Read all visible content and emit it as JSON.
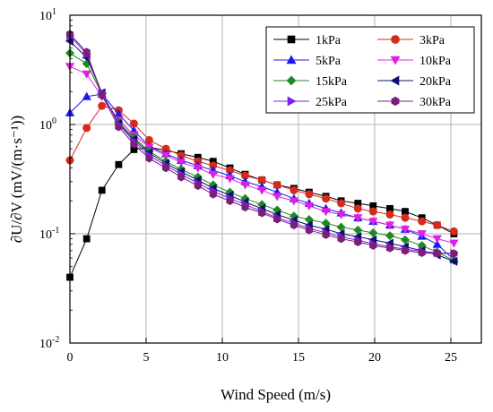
{
  "chart_data": {
    "type": "line",
    "xlabel": "Wind Speed (m/s)",
    "ylabel": "∂U/∂V (mV/(m·s⁻¹))",
    "x_scale": "linear",
    "y_scale": "log",
    "xlim": [
      0,
      27
    ],
    "ylim": [
      0.01,
      10
    ],
    "x_ticks": [
      0,
      5,
      10,
      15,
      20,
      25
    ],
    "y_ticks": [
      {
        "value": 0.01,
        "base": "10",
        "exp": "-2"
      },
      {
        "value": 0.1,
        "base": "10",
        "exp": "-1"
      },
      {
        "value": 1,
        "base": "10",
        "exp": "0"
      },
      {
        "value": 10,
        "base": "10",
        "exp": "1"
      }
    ],
    "grid": true,
    "legend_position": "top-right",
    "x": [
      0,
      1.1,
      2.1,
      3.2,
      4.2,
      5.2,
      6.3,
      7.3,
      8.4,
      9.4,
      10.5,
      11.5,
      12.6,
      13.6,
      14.7,
      15.7,
      16.8,
      17.8,
      18.9,
      19.9,
      21.0,
      22.0,
      23.1,
      24.1,
      25.2
    ],
    "series": [
      {
        "name": "1kPa",
        "color": "#000000",
        "marker": "square",
        "values": [
          0.04,
          0.09,
          0.25,
          0.43,
          0.59,
          0.62,
          0.58,
          0.54,
          0.5,
          0.46,
          0.4,
          0.35,
          0.31,
          0.28,
          0.26,
          0.24,
          0.22,
          0.2,
          0.19,
          0.18,
          0.17,
          0.16,
          0.14,
          0.12,
          0.1
        ]
      },
      {
        "name": "3kPa",
        "color": "#d62a1e",
        "marker": "circle",
        "values": [
          0.47,
          0.93,
          1.48,
          1.35,
          1.02,
          0.72,
          0.6,
          0.52,
          0.46,
          0.42,
          0.38,
          0.34,
          0.31,
          0.28,
          0.25,
          0.23,
          0.21,
          0.19,
          0.17,
          0.16,
          0.15,
          0.14,
          0.13,
          0.12,
          0.105
        ]
      },
      {
        "name": "5kPa",
        "color": "#1a1af0",
        "marker": "triangle-up",
        "values": [
          1.28,
          1.8,
          1.9,
          1.25,
          0.88,
          0.63,
          0.54,
          0.47,
          0.42,
          0.38,
          0.34,
          0.3,
          0.27,
          0.24,
          0.21,
          0.19,
          0.17,
          0.155,
          0.14,
          0.13,
          0.12,
          0.11,
          0.095,
          0.08,
          0.058
        ]
      },
      {
        "name": "10kPa",
        "color": "#e020e0",
        "marker": "triangle-down",
        "values": [
          3.4,
          2.9,
          1.8,
          1.1,
          0.8,
          0.62,
          0.52,
          0.45,
          0.4,
          0.35,
          0.32,
          0.28,
          0.25,
          0.22,
          0.2,
          0.18,
          0.16,
          0.15,
          0.14,
          0.13,
          0.12,
          0.11,
          0.1,
          0.09,
          0.082
        ]
      },
      {
        "name": "15kPa",
        "color": "#1f8a1f",
        "marker": "diamond",
        "values": [
          4.5,
          3.6,
          1.9,
          1.05,
          0.76,
          0.57,
          0.46,
          0.39,
          0.33,
          0.28,
          0.24,
          0.21,
          0.185,
          0.165,
          0.145,
          0.135,
          0.125,
          0.115,
          0.108,
          0.102,
          0.096,
          0.088,
          0.078,
          0.068,
          0.057
        ]
      },
      {
        "name": "20kPa",
        "color": "#10106e",
        "marker": "triangle-left",
        "values": [
          5.8,
          4.1,
          1.95,
          1.02,
          0.73,
          0.55,
          0.44,
          0.37,
          0.31,
          0.26,
          0.225,
          0.195,
          0.17,
          0.15,
          0.133,
          0.12,
          0.11,
          0.1,
          0.094,
          0.088,
          0.082,
          0.076,
          0.07,
          0.064,
          0.056
        ]
      },
      {
        "name": "25kPa",
        "color": "#7a20e8",
        "marker": "triangle-right",
        "values": [
          6.5,
          4.4,
          1.95,
          1.0,
          0.7,
          0.52,
          0.42,
          0.35,
          0.29,
          0.245,
          0.21,
          0.185,
          0.16,
          0.14,
          0.125,
          0.112,
          0.102,
          0.094,
          0.087,
          0.081,
          0.076,
          0.072,
          0.069,
          0.067,
          0.066
        ]
      },
      {
        "name": "30kPa",
        "color": "#7a1f7a",
        "marker": "hexagon",
        "values": [
          6.7,
          4.6,
          1.85,
          0.95,
          0.66,
          0.49,
          0.4,
          0.33,
          0.275,
          0.23,
          0.2,
          0.175,
          0.155,
          0.136,
          0.12,
          0.108,
          0.098,
          0.09,
          0.084,
          0.078,
          0.074,
          0.07,
          0.067,
          0.066,
          0.066
        ]
      }
    ]
  }
}
